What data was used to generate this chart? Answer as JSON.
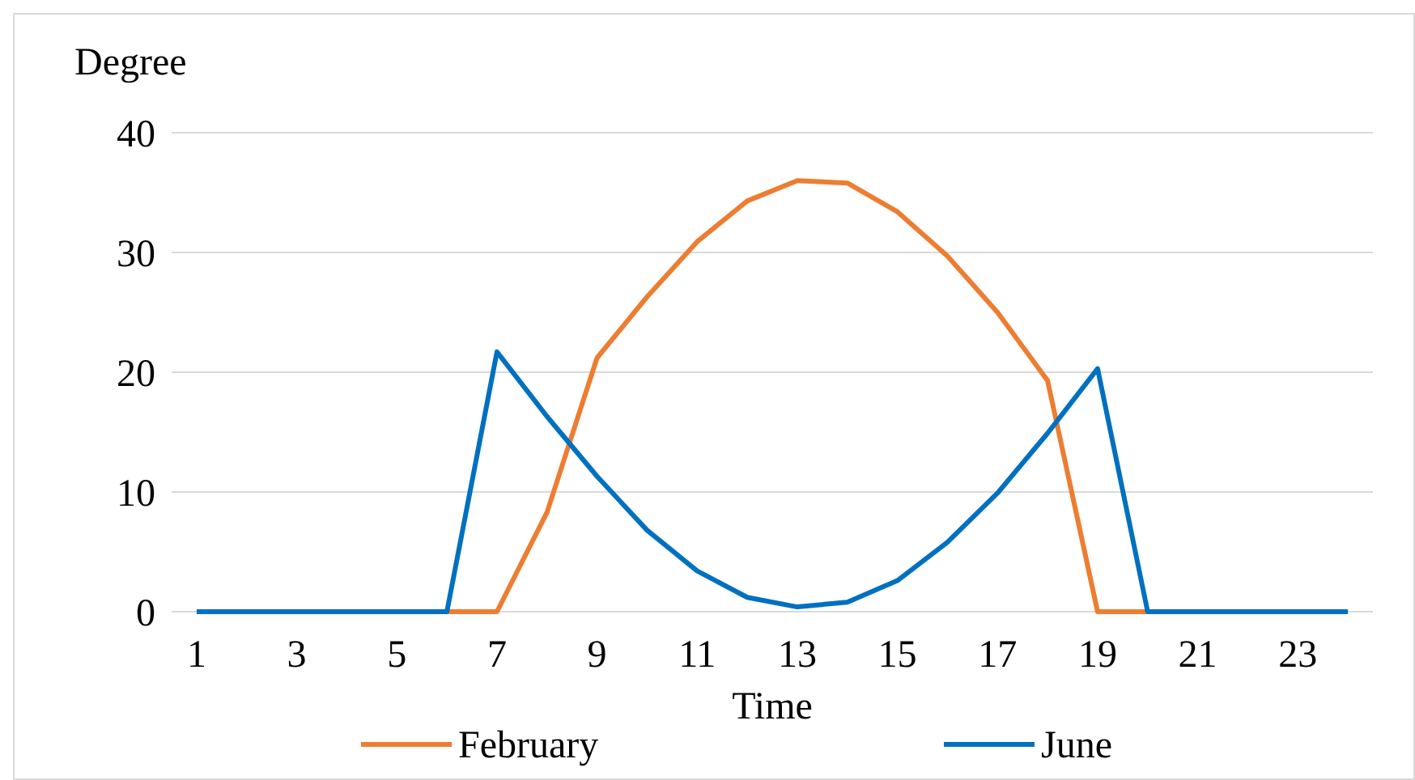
{
  "chart_data": {
    "type": "line",
    "xlabel": "Time",
    "ylabel": "Degree",
    "x": [
      1,
      2,
      3,
      4,
      5,
      6,
      7,
      8,
      9,
      10,
      11,
      12,
      13,
      14,
      15,
      16,
      17,
      18,
      19,
      20,
      21,
      22,
      23,
      24
    ],
    "xlim": [
      0.5,
      24.5
    ],
    "xticks": [
      1,
      3,
      5,
      7,
      9,
      11,
      13,
      15,
      17,
      19,
      21,
      23
    ],
    "ylim": [
      0,
      40
    ],
    "yticks": [
      0,
      10,
      20,
      30,
      40
    ],
    "grid": "y",
    "legend": "bottom",
    "marker": "none",
    "line_style": "solid",
    "series": [
      {
        "name": "February",
        "color": "#ed7d31",
        "values": [
          null,
          null,
          null,
          null,
          0,
          0,
          0,
          8.3,
          21.2,
          26.3,
          30.9,
          34.3,
          36.0,
          35.8,
          33.4,
          29.7,
          25.0,
          19.3,
          0,
          0,
          0,
          null,
          null,
          null
        ]
      },
      {
        "name": "June",
        "color": "#0070c0",
        "values": [
          0,
          0,
          0,
          0,
          0,
          0,
          21.7,
          16.3,
          11.3,
          6.8,
          3.4,
          1.2,
          0.4,
          0.8,
          2.6,
          5.8,
          9.9,
          14.9,
          20.3,
          0,
          0,
          0,
          0,
          0
        ]
      }
    ]
  }
}
